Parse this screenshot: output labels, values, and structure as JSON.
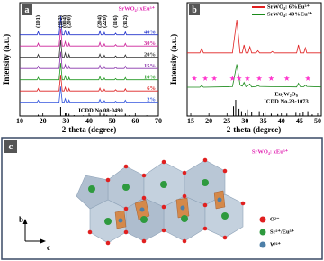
{
  "chart_data": [
    {
      "type": "line",
      "panel_label": "a",
      "title": "SrWO₄: xEu³⁺",
      "x_label": "2-theta (degree)",
      "y_label": "Intensity (a.u.)",
      "xlim": [
        10,
        70
      ],
      "xticks": [
        10,
        20,
        30,
        40,
        50,
        60,
        70
      ],
      "x": [
        10,
        17.5,
        18,
        18.5,
        27,
        27.7,
        28.4,
        29.2,
        29.7,
        30.2,
        31,
        31.3,
        31.7,
        44.2,
        44.7,
        45.2,
        46.2,
        46.6,
        47,
        51,
        51.5,
        52,
        55.2,
        55.7,
        56.2,
        70
      ],
      "series": [
        {
          "name": "40%",
          "color": "#2233cc",
          "values": [
            6,
            6,
            22,
            6,
            6,
            100,
            6,
            6,
            30,
            6,
            6,
            22,
            6,
            6,
            25,
            6,
            6,
            18,
            6,
            6,
            14,
            6,
            6,
            20,
            6,
            6
          ]
        },
        {
          "name": "30%",
          "color": "#cc2299",
          "values": [
            6,
            6,
            20,
            6,
            6,
            95,
            6,
            6,
            28,
            6,
            6,
            20,
            6,
            6,
            24,
            6,
            6,
            17,
            6,
            6,
            13,
            6,
            6,
            19,
            6,
            6
          ]
        },
        {
          "name": "20%",
          "color": "#333333",
          "values": [
            6,
            6,
            20,
            6,
            6,
            92,
            6,
            6,
            28,
            6,
            6,
            20,
            6,
            6,
            22,
            6,
            6,
            16,
            6,
            6,
            13,
            6,
            6,
            18,
            6,
            6
          ]
        },
        {
          "name": "15%",
          "color": "#8833aa",
          "values": [
            6,
            6,
            18,
            6,
            6,
            90,
            6,
            6,
            26,
            6,
            6,
            18,
            6,
            6,
            22,
            6,
            6,
            16,
            6,
            6,
            12,
            6,
            6,
            18,
            6,
            6
          ]
        },
        {
          "name": "10%",
          "color": "#229922",
          "values": [
            6,
            6,
            18,
            6,
            6,
            90,
            6,
            6,
            26,
            6,
            6,
            18,
            6,
            6,
            22,
            6,
            6,
            15,
            6,
            6,
            12,
            6,
            6,
            17,
            6,
            6
          ]
        },
        {
          "name": "6%",
          "color": "#dd2222",
          "values": [
            6,
            6,
            18,
            6,
            6,
            88,
            6,
            6,
            25,
            6,
            6,
            18,
            6,
            6,
            20,
            6,
            6,
            15,
            6,
            6,
            12,
            6,
            6,
            17,
            6,
            6
          ]
        },
        {
          "name": "2%",
          "color": "#3355dd",
          "values": [
            6,
            6,
            16,
            6,
            6,
            85,
            6,
            6,
            24,
            6,
            6,
            17,
            6,
            6,
            20,
            6,
            6,
            14,
            6,
            6,
            11,
            6,
            6,
            16,
            6,
            6
          ]
        }
      ],
      "reference": {
        "name": "ICDD No.08-0490",
        "color": "#000000",
        "x": [
          18,
          27.7,
          29.7,
          31.3,
          33.5,
          37.5,
          40.5,
          44.7,
          46.6,
          47.7,
          51.5,
          55.7,
          57.5,
          60,
          65
        ],
        "values": [
          15,
          100,
          30,
          25,
          10,
          8,
          8,
          35,
          25,
          12,
          15,
          25,
          10,
          8,
          8
        ]
      },
      "annotations": [
        {
          "text": "(101)",
          "x": 18
        },
        {
          "text": "(112)",
          "x": 27.7
        },
        {
          "text": "(004)",
          "x": 29.4
        },
        {
          "text": "(200)",
          "x": 31.5
        },
        {
          "text": "(204)",
          "x": 44.7
        },
        {
          "text": "(220)",
          "x": 46.8
        },
        {
          "text": "(116)",
          "x": 51.5
        },
        {
          "text": "(312)",
          "x": 55.7
        }
      ]
    },
    {
      "type": "line",
      "panel_label": "b",
      "x_label": "2-theta (degree)",
      "y_label": "Intensity (a.u.)",
      "xlim": [
        14,
        51
      ],
      "xticks": [
        15,
        20,
        25,
        30,
        35,
        40,
        45,
        50
      ],
      "x": [
        14,
        17.5,
        18,
        18.5,
        26.5,
        27.7,
        28.6,
        29.2,
        29.7,
        30.2,
        30.8,
        31.3,
        31.8,
        33,
        33.5,
        34,
        37,
        37.5,
        38,
        44.2,
        44.7,
        45.2,
        46.2,
        46.6,
        47,
        51
      ],
      "series": [
        {
          "name": "SrWO₄: 6%Eu³⁺",
          "color": "#e02020",
          "values": [
            8,
            8,
            20,
            8,
            8,
            100,
            8,
            8,
            30,
            8,
            8,
            25,
            8,
            8,
            14,
            8,
            8,
            12,
            8,
            8,
            30,
            8,
            8,
            22,
            8,
            8
          ]
        },
        {
          "name": "SrWO₄: 40%Eu³⁺",
          "color": "#1a8a1a",
          "values": [
            10,
            10,
            16,
            10,
            12,
            95,
            18,
            14,
            28,
            12,
            16,
            22,
            11,
            12,
            16,
            13,
            12,
            12,
            12,
            11,
            25,
            12,
            12,
            18,
            13,
            11
          ]
        }
      ],
      "markers": {
        "color": "#ff33cc",
        "x": [
          16,
          19,
          21.5,
          26.5,
          28.3,
          30.6,
          33.9,
          37.2,
          41.5,
          47.3
        ]
      },
      "reference": {
        "name": "Eu₂W₂O₉",
        "label": "ICDD No.23-1073",
        "color": "#000000",
        "x": [
          26.8,
          27.4,
          28.3,
          29,
          30.6,
          31.8,
          33.9,
          35.5,
          37.2,
          39,
          41.5,
          44,
          46,
          47.3,
          48.5
        ],
        "values": [
          60,
          100,
          45,
          30,
          40,
          25,
          30,
          20,
          15,
          12,
          15,
          20,
          25,
          30,
          10
        ]
      }
    }
  ],
  "structure": {
    "panel_label": "c",
    "title": "SrWO₄: xEu³⁺",
    "legend": [
      "O²⁻",
      "Sr²⁺/Eu³⁺",
      "W⁶⁺"
    ],
    "axes": [
      "b",
      "c"
    ]
  }
}
